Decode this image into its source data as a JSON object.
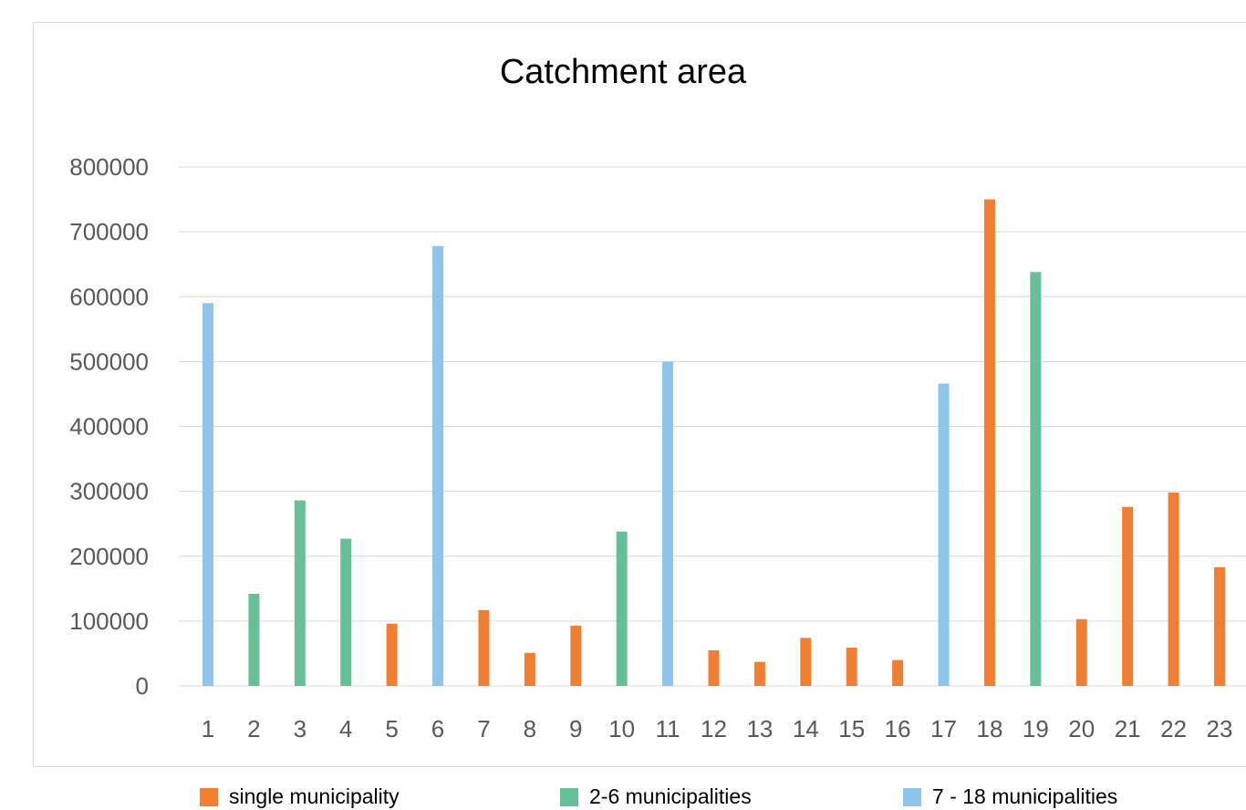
{
  "chart_data": {
    "type": "bar",
    "title": "Catchment area",
    "xlabel": "",
    "ylabel": "",
    "ylim": [
      0,
      800000
    ],
    "yticks": [
      "0",
      "100000",
      "200000",
      "300000",
      "400000",
      "500000",
      "600000",
      "700000",
      "800000"
    ],
    "grid": true,
    "legend_position": "bottom",
    "categories": [
      "1",
      "2",
      "3",
      "4",
      "5",
      "6",
      "7",
      "8",
      "9",
      "10",
      "11",
      "12",
      "13",
      "14",
      "15",
      "16",
      "17",
      "18",
      "19",
      "20",
      "21",
      "22",
      "23"
    ],
    "values": [
      590000,
      142000,
      286000,
      227000,
      96000,
      678000,
      117000,
      51000,
      93000,
      238000,
      500000,
      55000,
      37000,
      74000,
      59000,
      40000,
      466000,
      750000,
      638000,
      103000,
      276000,
      298000,
      183000
    ],
    "groups": [
      "g3",
      "g2",
      "g2",
      "g2",
      "g1",
      "g3",
      "g1",
      "g1",
      "g1",
      "g2",
      "g3",
      "g1",
      "g1",
      "g1",
      "g1",
      "g1",
      "g3",
      "g1",
      "g2",
      "g1",
      "g1",
      "g1",
      "g1"
    ],
    "legend": [
      {
        "key": "g1",
        "name": "single municipality",
        "color": "#F07F33"
      },
      {
        "key": "g2",
        "name": "2-6 municipalities",
        "color": "#66BF97"
      },
      {
        "key": "g3",
        "name": "7 - 18 municipalities",
        "color": "#8EC5EA"
      }
    ]
  }
}
